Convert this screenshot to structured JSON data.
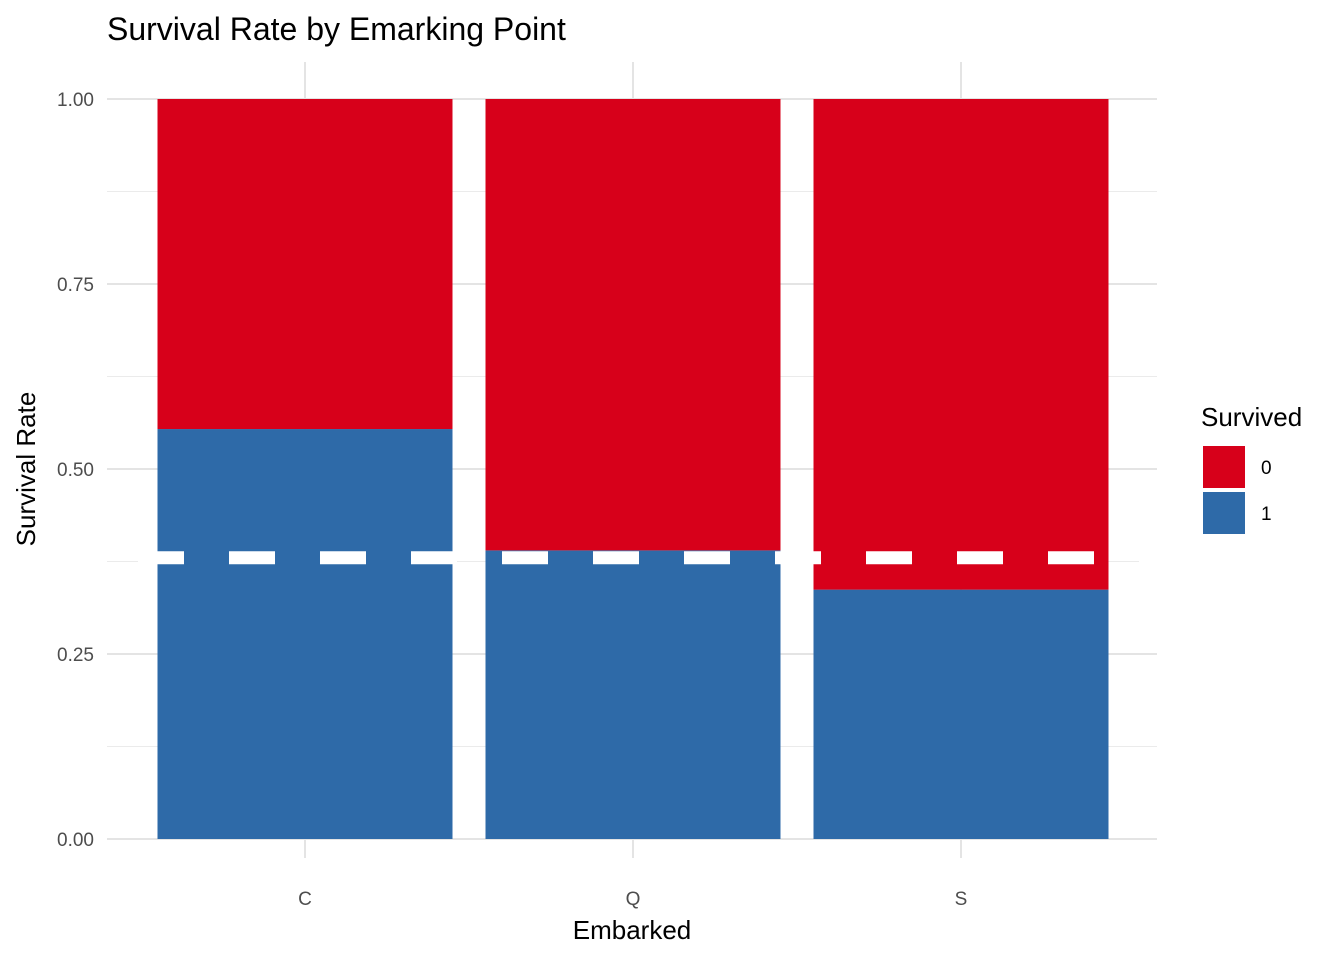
{
  "chart_data": {
    "type": "bar",
    "stacked": true,
    "title": "Survival Rate by Emarking Point",
    "xlabel": "Embarked",
    "ylabel": "Survival Rate",
    "categories": [
      "C",
      "Q",
      "S"
    ],
    "series": [
      {
        "name": "0",
        "values": [
          0.446,
          0.61,
          0.663
        ],
        "color": "#d7001a"
      },
      {
        "name": "1",
        "values": [
          0.554,
          0.39,
          0.337
        ],
        "color": "#2e6aa8"
      }
    ],
    "stack_order": [
      "1",
      "0"
    ],
    "reference_line": {
      "y": 0.38,
      "style": "dashed",
      "color": "#ffffff"
    },
    "ylim": [
      0,
      1
    ],
    "yticks": [
      0.0,
      0.25,
      0.5,
      0.75,
      1.0
    ],
    "ytick_labels": [
      "0.00",
      "0.25",
      "0.50",
      "0.75",
      "1.00"
    ],
    "grid": true,
    "legend": {
      "title": "Survived",
      "position": "right",
      "entries": [
        "0",
        "1"
      ]
    }
  }
}
